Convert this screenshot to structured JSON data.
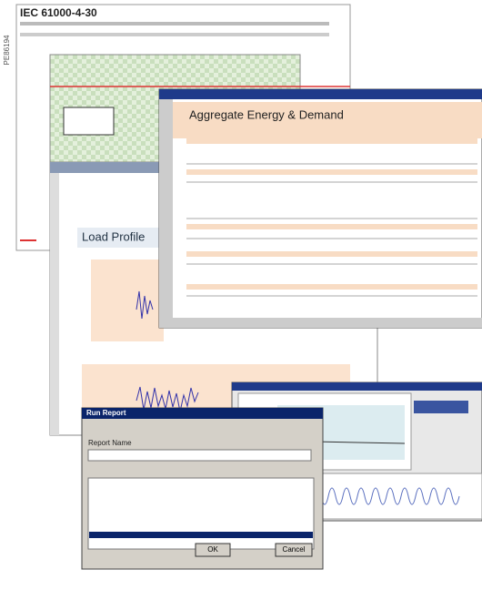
{
  "side_code": "PE86194",
  "report1": {
    "heading": "IEC 61000-4-30"
  },
  "report2": {
    "heading": "Aggregate Energy & Demand"
  },
  "report3": {
    "heading": "Load Profile"
  },
  "dialog": {
    "title": "Run Report",
    "label": "Report Name",
    "buttons": [
      "OK",
      "Cancel"
    ]
  }
}
